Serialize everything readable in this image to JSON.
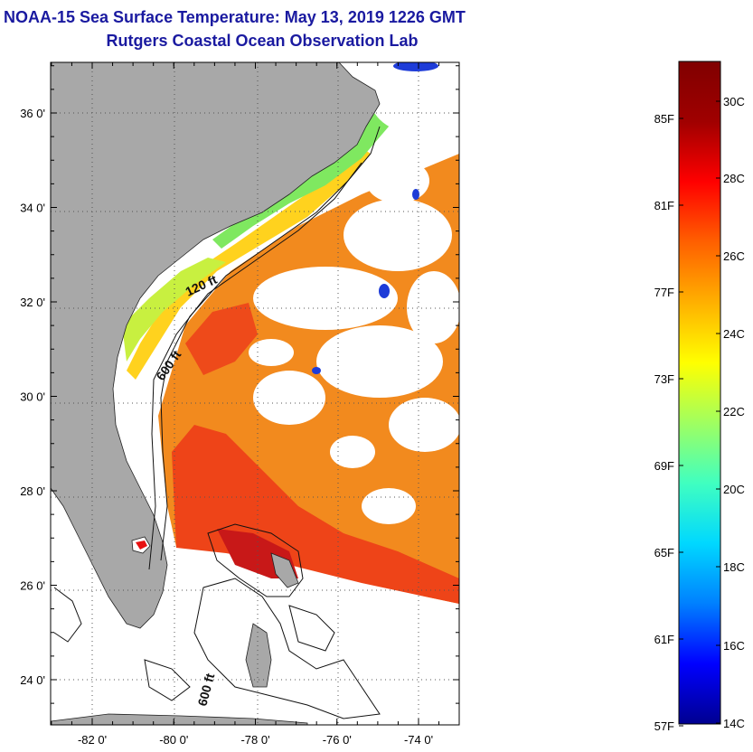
{
  "header": {
    "title": "NOAA-15 Sea Surface Temperature:  May 13, 2019 1226 GMT",
    "subtitle": "Rutgers Coastal Ocean Observation Lab"
  },
  "map": {
    "lat_ticks": [
      {
        "label": "36 0'",
        "value": 36
      },
      {
        "label": "34 0'",
        "value": 34
      },
      {
        "label": "32 0'",
        "value": 32
      },
      {
        "label": "30 0'",
        "value": 30
      },
      {
        "label": "28 0'",
        "value": 28
      },
      {
        "label": "26 0'",
        "value": 26
      },
      {
        "label": "24 0'",
        "value": 24
      }
    ],
    "lon_ticks": [
      {
        "label": "-82 0'",
        "value": -82
      },
      {
        "label": "-80 0'",
        "value": -80
      },
      {
        "label": "-78 0'",
        "value": -78
      },
      {
        "label": "-76 0'",
        "value": -76
      },
      {
        "label": "-74 0'",
        "value": -74
      }
    ],
    "contour_labels": [
      "120 ft",
      "600 ft",
      "600 ft"
    ],
    "land_color": "#a8a8a8"
  },
  "colorbar": {
    "fahrenheit_labels": [
      "85F",
      "81F",
      "77F",
      "73F",
      "69F",
      "65F",
      "61F",
      "57F"
    ],
    "celsius_labels": [
      "30C",
      "28C",
      "26C",
      "24C",
      "22C",
      "20C",
      "18C",
      "16C",
      "14C"
    ],
    "colors": [
      "#000090",
      "#0000ff",
      "#0080ff",
      "#00d8ff",
      "#40ffc0",
      "#a0ff60",
      "#ffff00",
      "#ffb000",
      "#ff6000",
      "#ff0000",
      "#a00000",
      "#800000"
    ]
  }
}
